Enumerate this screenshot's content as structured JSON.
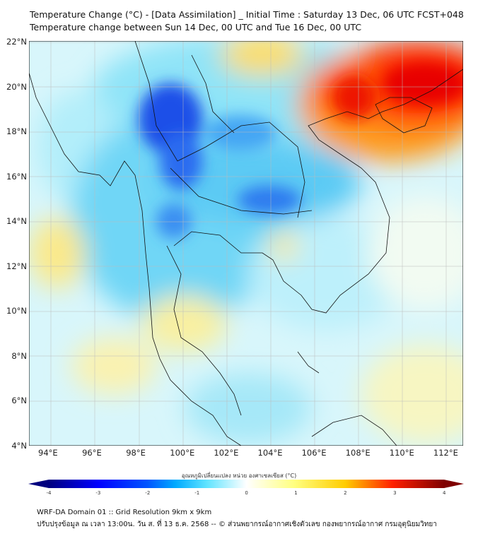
{
  "title": {
    "line1": "Temperature Change (°C) - [Data Assimilation] _ Initial Time : Saturday 13 Dec, 06 UTC FCST+048",
    "line2": "Temperature change between Sun 14 Dec, 00 UTC and Tue 16 Dec, 00 UTC"
  },
  "map": {
    "lat_labels": [
      "22°N",
      "20°N",
      "18°N",
      "16°N",
      "14°N",
      "12°N",
      "10°N",
      "8°N",
      "6°N",
      "4°N"
    ],
    "lon_labels": [
      "94°E",
      "96°E",
      "98°E",
      "100°E",
      "102°E",
      "104°E",
      "106°E",
      "108°E",
      "110°E",
      "112°E"
    ]
  },
  "colorbar": {
    "label": "อุณหภูมิเปลี่ยนแปลง หน่วย องศาเซลเซียส (°C)",
    "ticks": [
      "-4",
      "-3",
      "-2",
      "-1",
      "0",
      "1",
      "2",
      "3",
      "4"
    ],
    "colors": [
      "#00007f",
      "#0000ff",
      "#00aaff",
      "#80eeff",
      "#ffffff",
      "#ffff80",
      "#ffcc00",
      "#ff2000",
      "#7f0000"
    ]
  },
  "footer": {
    "line1": "WRF-DA Domain 01 :: Grid Resolution 9km x 9km",
    "line2": "ปรับปรุงข้อมูล ณ เวลา 13:00น. วัน ส. ที่ 13 ธ.ค. 2568 -- © ส่วนพยากรณ์อากาศเชิงตัวเลข กองพยากรณ์อากาศ กรมอุตุนิยมวิทยา"
  }
}
